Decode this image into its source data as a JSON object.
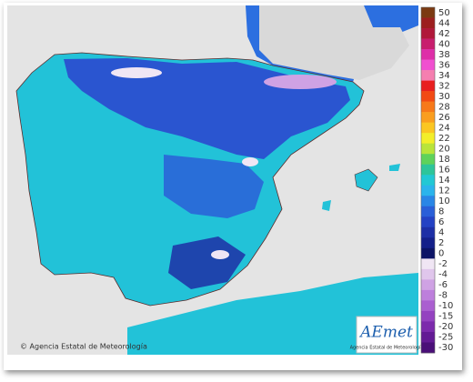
{
  "legend": {
    "entries": [
      {
        "label": "50",
        "color": "#7b3a12"
      },
      {
        "label": "44",
        "color": "#9c1f1f"
      },
      {
        "label": "42",
        "color": "#b0183a"
      },
      {
        "label": "40",
        "color": "#c81e6e"
      },
      {
        "label": "38",
        "color": "#de2fa8"
      },
      {
        "label": "36",
        "color": "#f04fd0"
      },
      {
        "label": "34",
        "color": "#f57fb0"
      },
      {
        "label": "32",
        "color": "#e81f1f"
      },
      {
        "label": "30",
        "color": "#f24a14"
      },
      {
        "label": "28",
        "color": "#f7791a"
      },
      {
        "label": "26",
        "color": "#fa9e1f"
      },
      {
        "label": "24",
        "color": "#fbc622"
      },
      {
        "label": "22",
        "color": "#f3ee2a"
      },
      {
        "label": "20",
        "color": "#b9e43a"
      },
      {
        "label": "18",
        "color": "#5fd25a"
      },
      {
        "label": "16",
        "color": "#2ec59a"
      },
      {
        "label": "14",
        "color": "#22c8d4"
      },
      {
        "label": "12",
        "color": "#2bb4ec"
      },
      {
        "label": "10",
        "color": "#2a86e6"
      },
      {
        "label": "8",
        "color": "#2a5fd8"
      },
      {
        "label": "6",
        "color": "#2442c4"
      },
      {
        "label": "4",
        "color": "#1d2fa6"
      },
      {
        "label": "2",
        "color": "#14208a"
      },
      {
        "label": "0",
        "color": "#0c1466"
      },
      {
        "label": "-2",
        "color": "#f0e6f4"
      },
      {
        "label": "-4",
        "color": "#e0c6ec"
      },
      {
        "label": "-6",
        "color": "#cfa2e4"
      },
      {
        "label": "-8",
        "color": "#bd7fdc"
      },
      {
        "label": "-10",
        "color": "#aa5fd0"
      },
      {
        "label": "-15",
        "color": "#9442c0"
      },
      {
        "label": "-20",
        "color": "#7c2aac"
      },
      {
        "label": "-25",
        "color": "#631a94"
      },
      {
        "label": "-30",
        "color": "#4a0f78"
      }
    ]
  },
  "copyright": "© Agencia Estatal de Meteorología",
  "logo": {
    "name": "AEmet",
    "subtitle": "Agencia Estatal de Meteorología"
  }
}
